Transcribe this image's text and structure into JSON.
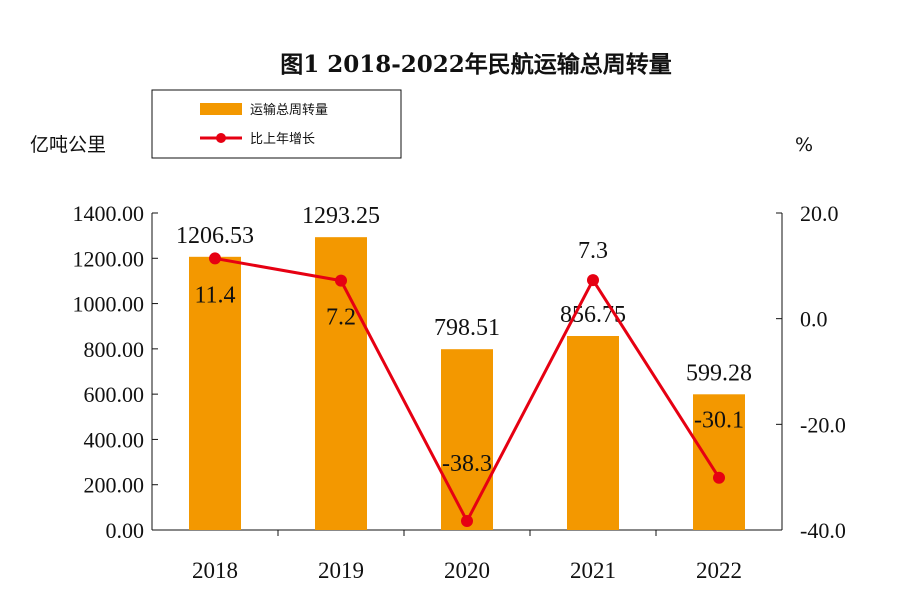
{
  "chart_data": {
    "type": "bar",
    "title": "图1  2018-2022年民航运输总周转量",
    "categories": [
      "2018",
      "2019",
      "2020",
      "2021",
      "2022"
    ],
    "series": [
      {
        "name": "运输总周转量",
        "type": "bar",
        "axis": "left",
        "values": [
          1206.53,
          1293.25,
          798.51,
          856.75,
          599.28
        ],
        "labels": [
          "1206.53",
          "1293.25",
          "798.51",
          "856.75",
          "599.28"
        ],
        "color": "#F39800"
      },
      {
        "name": "比上年增长",
        "type": "line",
        "axis": "right",
        "values": [
          11.4,
          7.2,
          -38.3,
          7.3,
          -30.1
        ],
        "labels": [
          "11.4",
          "7.2",
          "-38.3",
          "7.3",
          "-30.1"
        ],
        "color": "#E60012"
      }
    ],
    "y_left": {
      "label": "亿吨公里",
      "range": [
        0,
        1400
      ],
      "ticks": [
        "0.00",
        "200.00",
        "400.00",
        "600.00",
        "800.00",
        "1000.00",
        "1200.00",
        "1400.00"
      ]
    },
    "y_right": {
      "label": "%",
      "range": [
        -40,
        20
      ],
      "ticks": [
        "-40.0",
        "-20.0",
        "0.0",
        "20.0"
      ]
    },
    "legend": {
      "position": "top-left"
    },
    "grid": false
  }
}
